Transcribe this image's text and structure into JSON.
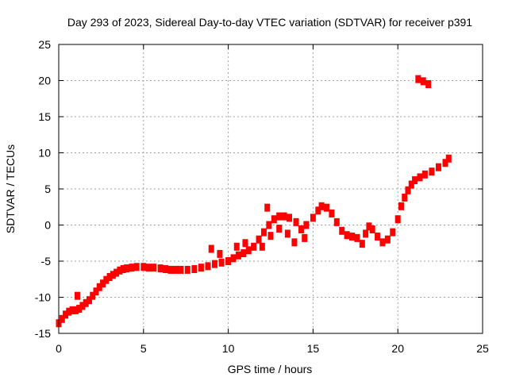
{
  "chart_data": {
    "type": "scatter",
    "title": "Day 293 of 2023, Sidereal Day-to-day VTEC variation (SDTVAR) for receiver p391",
    "xlabel": "GPS time / hours",
    "ylabel": "SDTVAR / TECUs",
    "xlim": [
      0,
      25
    ],
    "ylim": [
      -15,
      25
    ],
    "xticks": [
      0,
      5,
      10,
      15,
      20,
      25
    ],
    "yticks": [
      -15,
      -10,
      -5,
      0,
      5,
      10,
      15,
      20,
      25
    ],
    "grid": true,
    "marker_color": "#ff0000",
    "series": [
      {
        "points": [
          [
            0.0,
            -13.6
          ],
          [
            0.2,
            -13.0
          ],
          [
            0.4,
            -12.4
          ],
          [
            0.6,
            -12.0
          ],
          [
            0.8,
            -11.8
          ],
          [
            1.0,
            -11.8
          ],
          [
            1.2,
            -11.6
          ],
          [
            1.4,
            -11.2
          ],
          [
            1.6,
            -10.8
          ],
          [
            1.8,
            -10.4
          ],
          [
            2.0,
            -9.8
          ],
          [
            2.2,
            -9.2
          ],
          [
            2.4,
            -8.6
          ],
          [
            2.6,
            -8.1
          ],
          [
            2.8,
            -7.6
          ],
          [
            3.0,
            -7.2
          ],
          [
            3.2,
            -6.9
          ],
          [
            3.4,
            -6.6
          ],
          [
            3.6,
            -6.3
          ],
          [
            3.8,
            -6.1
          ],
          [
            4.0,
            -6.0
          ],
          [
            4.3,
            -5.9
          ],
          [
            4.6,
            -5.8
          ],
          [
            5.0,
            -5.8
          ],
          [
            5.3,
            -5.9
          ],
          [
            5.6,
            -5.9
          ],
          [
            6.0,
            -6.0
          ],
          [
            6.3,
            -6.1
          ],
          [
            6.6,
            -6.2
          ],
          [
            6.9,
            -6.2
          ],
          [
            7.2,
            -6.2
          ],
          [
            7.6,
            -6.2
          ],
          [
            8.0,
            -6.1
          ],
          [
            8.4,
            -5.9
          ],
          [
            8.8,
            -5.7
          ],
          [
            9.2,
            -5.4
          ],
          [
            9.6,
            -5.2
          ],
          [
            10.0,
            -5.0
          ],
          [
            10.3,
            -4.6
          ],
          [
            10.6,
            -4.2
          ],
          [
            10.9,
            -3.9
          ],
          [
            11.2,
            -3.5
          ],
          [
            11.5,
            -3.0
          ],
          [
            11.8,
            -2.0
          ],
          [
            12.1,
            -1.0
          ],
          [
            12.4,
            0.0
          ],
          [
            12.7,
            0.8
          ],
          [
            13.0,
            1.2
          ],
          [
            13.3,
            1.2
          ],
          [
            13.6,
            1.0
          ],
          [
            14.0,
            0.4
          ],
          [
            14.3,
            -0.6
          ],
          [
            14.6,
            0.0
          ],
          [
            15.0,
            1.0
          ],
          [
            15.3,
            2.0
          ],
          [
            15.5,
            2.6
          ],
          [
            15.8,
            2.4
          ],
          [
            16.1,
            1.6
          ],
          [
            16.4,
            0.4
          ],
          [
            16.7,
            -0.8
          ],
          [
            17.0,
            -1.4
          ],
          [
            17.3,
            -1.6
          ],
          [
            17.6,
            -1.8
          ],
          [
            17.9,
            -2.6
          ],
          [
            18.1,
            -1.2
          ],
          [
            18.3,
            -0.2
          ],
          [
            18.5,
            -0.6
          ],
          [
            18.8,
            -1.6
          ],
          [
            19.1,
            -2.4
          ],
          [
            19.4,
            -2.0
          ],
          [
            19.7,
            -1.0
          ],
          [
            20.0,
            0.8
          ],
          [
            20.2,
            2.6
          ],
          [
            20.4,
            3.8
          ],
          [
            20.6,
            4.8
          ],
          [
            20.8,
            5.6
          ],
          [
            21.0,
            6.2
          ],
          [
            21.3,
            6.6
          ],
          [
            21.6,
            7.0
          ],
          [
            22.0,
            7.4
          ],
          [
            22.4,
            8.0
          ],
          [
            22.8,
            8.6
          ],
          [
            23.0,
            9.2
          ],
          [
            1.1,
            -9.8
          ],
          [
            9.0,
            -3.3
          ],
          [
            9.5,
            -4.0
          ],
          [
            10.5,
            -3.0
          ],
          [
            11.0,
            -2.5
          ],
          [
            12.0,
            -3.0
          ],
          [
            12.5,
            -1.5
          ],
          [
            13.0,
            -0.5
          ],
          [
            13.5,
            -1.2
          ],
          [
            13.9,
            -2.4
          ],
          [
            12.3,
            2.4
          ],
          [
            14.5,
            -1.8
          ],
          [
            21.2,
            20.2
          ],
          [
            21.5,
            19.9
          ],
          [
            21.8,
            19.5
          ]
        ]
      }
    ]
  }
}
